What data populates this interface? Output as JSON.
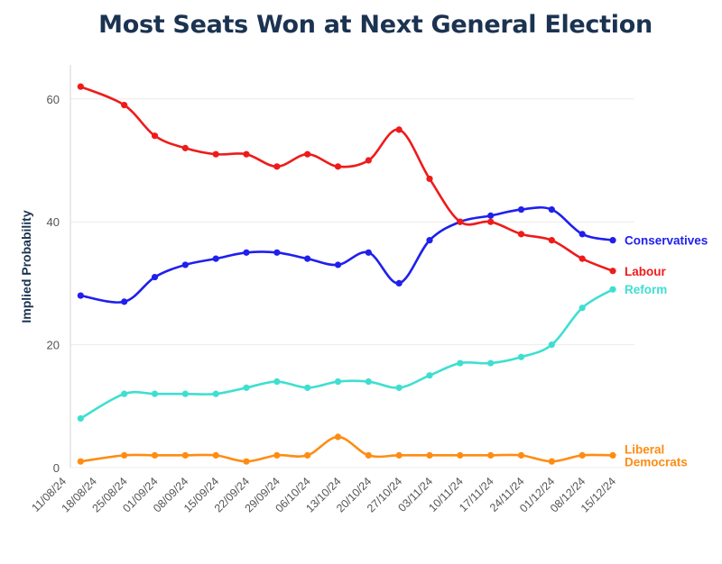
{
  "chart_data": {
    "type": "line",
    "title": "Most Seats Won at Next General Election",
    "ylabel": "Implied Probability",
    "xlabel": "",
    "ylim": [
      0,
      66
    ],
    "yticks": [
      0,
      20,
      40,
      60
    ],
    "grid": true,
    "x_ticks": [
      "11/08/24",
      "18/08/24",
      "25/08/24",
      "01/09/24",
      "08/09/24",
      "15/09/24",
      "22/09/24",
      "29/09/24",
      "06/10/24",
      "13/10/24",
      "20/10/24",
      "27/10/24",
      "03/11/24",
      "10/11/24",
      "17/11/24",
      "24/11/24",
      "01/12/24",
      "08/12/24",
      "15/12/24"
    ],
    "x": [
      "15/08/24",
      "25/08/24",
      "01/09/24",
      "08/09/24",
      "15/09/24",
      "22/09/24",
      "29/09/24",
      "06/10/24",
      "13/10/24",
      "20/10/24",
      "27/10/24",
      "03/11/24",
      "10/11/24",
      "17/11/24",
      "24/11/24",
      "01/12/24",
      "08/12/24",
      "15/12/24"
    ],
    "series": [
      {
        "name": "Conservatives",
        "label": "Conservatives",
        "color": "#1f1fee",
        "values": [
          28,
          27,
          31,
          33,
          34,
          35,
          35,
          34,
          33,
          35,
          30,
          37,
          40,
          41,
          42,
          42,
          38,
          37
        ]
      },
      {
        "name": "Labour",
        "label": "Labour",
        "color": "#ee1b1b",
        "values": [
          62,
          59,
          54,
          52,
          51,
          51,
          49,
          51,
          49,
          50,
          55,
          47,
          40,
          40,
          38,
          37,
          34,
          32
        ]
      },
      {
        "name": "Reform",
        "label": "Reform",
        "color": "#3fdfd0",
        "values": [
          8,
          12,
          12,
          12,
          12,
          13,
          14,
          13,
          14,
          14,
          13,
          15,
          17,
          17,
          18,
          20,
          26,
          29
        ]
      },
      {
        "name": "Liberal Democrats",
        "label_lines": [
          "Liberal",
          "Democrats"
        ],
        "color": "#ff8c12",
        "values": [
          1,
          2,
          2,
          2,
          2,
          1,
          2,
          2,
          5,
          2,
          2,
          2,
          2,
          2,
          2,
          1,
          2,
          2
        ]
      }
    ]
  }
}
